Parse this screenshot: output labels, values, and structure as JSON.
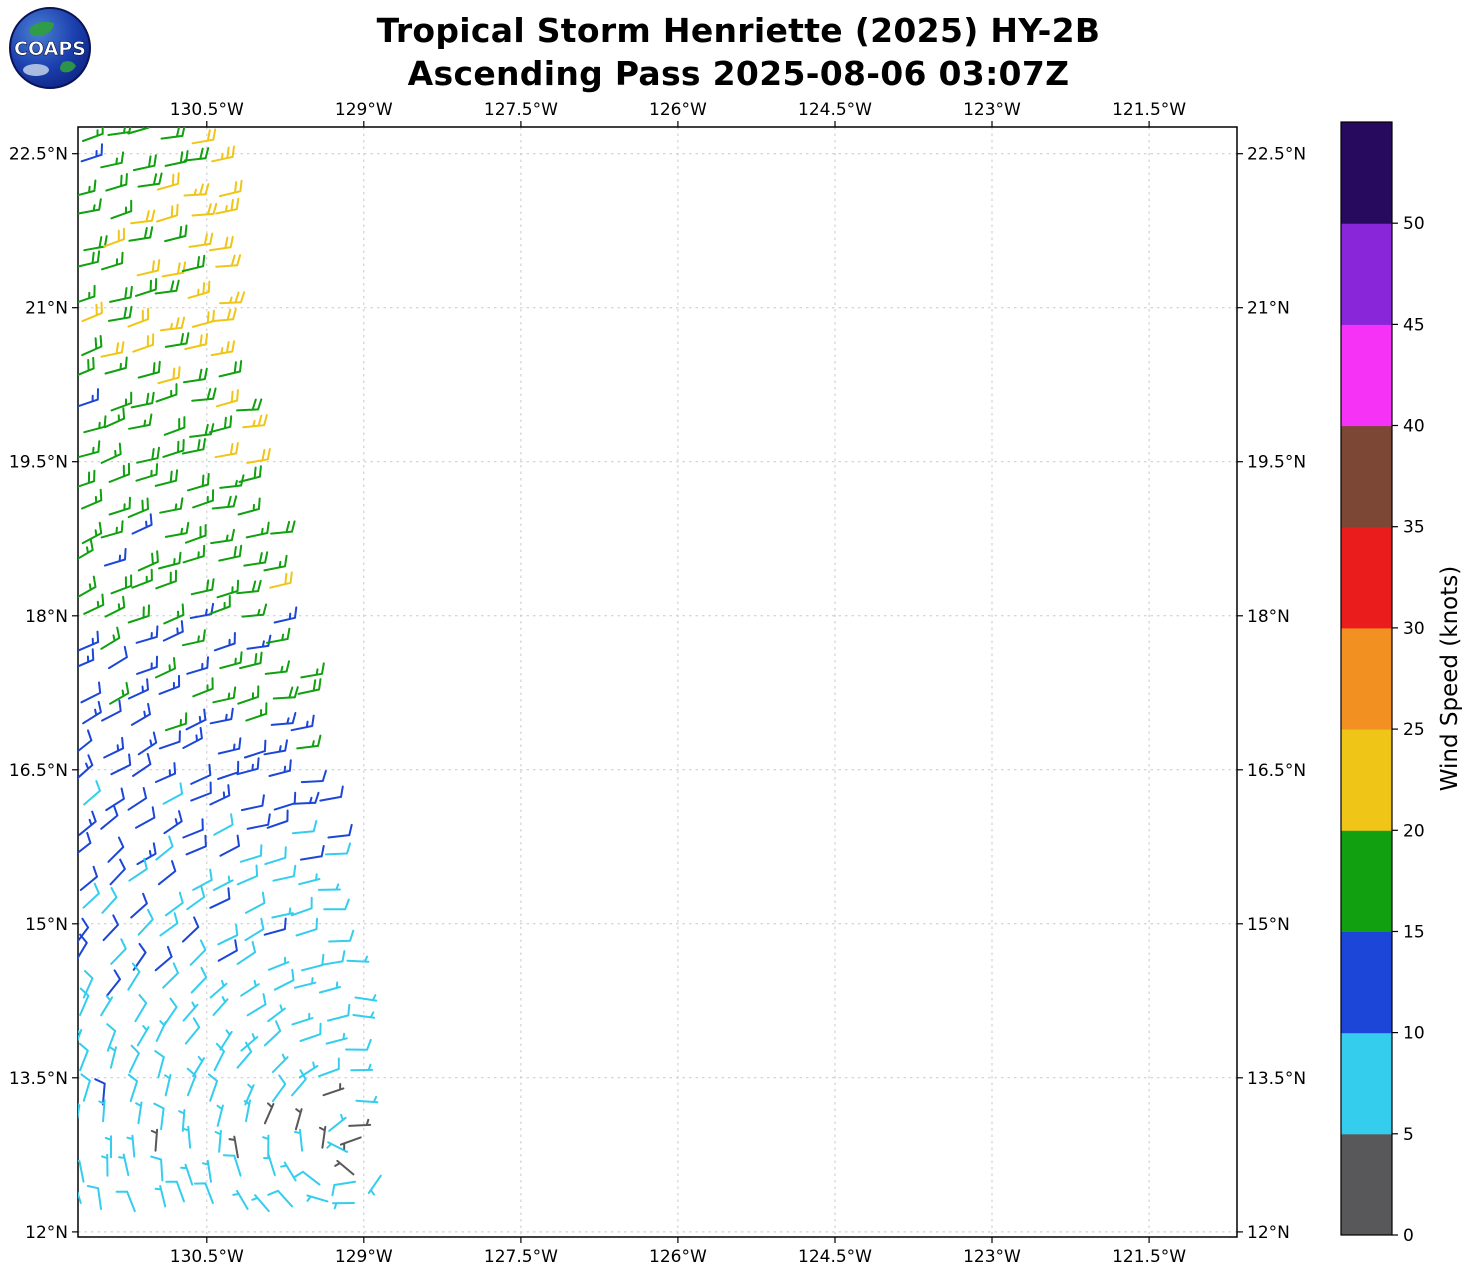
{
  "header": {
    "title_line1": "Tropical Storm Henriette (2025) HY-2B",
    "title_line2": "Ascending Pass 2025-08-06 03:07Z"
  },
  "logo": {
    "text": "COAPS"
  },
  "chart_data": {
    "type": "scatter",
    "subtype": "wind_barb_map",
    "title": "Tropical Storm Henriette (2025) HY-2B",
    "subtitle": "Ascending Pass 2025-08-06 03:07Z",
    "x_axis": {
      "ticks": [
        -130.5,
        -129,
        -127.5,
        -126,
        -124.5,
        -123,
        -121.5
      ],
      "tick_labels": [
        "130.5°W",
        "129°W",
        "127.5°W",
        "126°W",
        "124.5°W",
        "123°W",
        "121.5°W"
      ],
      "range": [
        -131.73,
        -120.66
      ]
    },
    "y_axis": {
      "ticks": [
        22.5,
        21,
        19.5,
        18,
        16.5,
        15,
        13.5,
        12
      ],
      "tick_labels": [
        "22.5°N",
        "21°N",
        "19.5°N",
        "18°N",
        "16.5°N",
        "15°N",
        "13.5°N",
        "12°N"
      ],
      "range": [
        11.95,
        22.76
      ]
    },
    "grid": true,
    "colorbar": {
      "label": "Wind Speed (knots)",
      "tick_values": [
        0,
        5,
        10,
        15,
        20,
        25,
        30,
        35,
        40,
        45,
        50
      ],
      "bins": [
        {
          "min": 0,
          "max": 5,
          "color": "#58585a"
        },
        {
          "min": 5,
          "max": 10,
          "color": "#35cdee"
        },
        {
          "min": 10,
          "max": 15,
          "color": "#1b46d7"
        },
        {
          "min": 15,
          "max": 20,
          "color": "#10a010"
        },
        {
          "min": 20,
          "max": 25,
          "color": "#efc617"
        },
        {
          "min": 25,
          "max": 30,
          "color": "#f29022"
        },
        {
          "min": 30,
          "max": 35,
          "color": "#ea1c1c"
        },
        {
          "min": 35,
          "max": 40,
          "color": "#7d4735"
        },
        {
          "min": 40,
          "max": 45,
          "color": "#f632f6"
        },
        {
          "min": 45,
          "max": 50,
          "color": "#8926d9"
        },
        {
          "min": 50,
          "max": 55,
          "color": "#27095e"
        }
      ]
    },
    "storm_center": {
      "lat": 12.8,
      "lon": -129.15
    },
    "swath": {
      "lon_west": -131.72,
      "lon_step": 0.26,
      "row_format": [
        "lat",
        "lon_east",
        "speed_west_kt",
        "speed_east_kt"
      ],
      "rows": [
        [
          22.65,
          -130.52,
          17,
          21
        ],
        [
          22.39,
          -130.42,
          16,
          22
        ],
        [
          22.13,
          -130.4,
          17,
          22
        ],
        [
          21.87,
          -130.38,
          16,
          22
        ],
        [
          21.61,
          -130.36,
          18,
          22
        ],
        [
          21.35,
          -130.33,
          19,
          23
        ],
        [
          21.09,
          -130.3,
          18,
          23
        ],
        [
          20.83,
          -130.28,
          19,
          22
        ],
        [
          20.57,
          -130.25,
          18,
          22
        ],
        [
          20.31,
          -130.18,
          17,
          22
        ],
        [
          20.05,
          -130.15,
          16,
          21
        ],
        [
          19.79,
          -130.1,
          16,
          21
        ],
        [
          19.53,
          -130.05,
          16,
          20
        ],
        [
          19.27,
          -130.0,
          16,
          19
        ],
        [
          19.01,
          -129.95,
          17,
          18
        ],
        [
          18.75,
          -129.9,
          16,
          18
        ],
        [
          18.49,
          -129.85,
          16,
          18
        ],
        [
          18.23,
          -129.8,
          16,
          18
        ],
        [
          17.97,
          -129.72,
          16,
          17
        ],
        [
          17.71,
          -129.66,
          15,
          17
        ],
        [
          17.45,
          -129.6,
          14,
          17
        ],
        [
          17.19,
          -129.55,
          13,
          17
        ],
        [
          16.93,
          -129.5,
          12,
          16
        ],
        [
          16.67,
          -129.45,
          12,
          16
        ],
        [
          16.41,
          -129.4,
          12,
          14
        ],
        [
          16.15,
          -129.35,
          12,
          11
        ],
        [
          15.89,
          -129.3,
          11,
          9
        ],
        [
          15.63,
          -129.28,
          11,
          9
        ],
        [
          15.37,
          -129.25,
          11,
          8
        ],
        [
          15.11,
          -129.2,
          11,
          8
        ],
        [
          14.85,
          -129.15,
          10,
          8
        ],
        [
          14.59,
          -129.1,
          10,
          7
        ],
        [
          14.33,
          -129.05,
          9,
          7
        ],
        [
          14.07,
          -129.0,
          9,
          7
        ],
        [
          13.81,
          -128.97,
          8,
          7
        ],
        [
          13.55,
          -128.93,
          8,
          6
        ],
        [
          13.29,
          -128.9,
          8,
          6
        ],
        [
          13.03,
          -128.87,
          7,
          6
        ],
        [
          12.77,
          -128.95,
          7,
          6
        ],
        [
          12.51,
          -128.85,
          8,
          6
        ],
        [
          12.25,
          -128.9,
          7,
          6
        ]
      ]
    },
    "extra_barbs": [
      {
        "lat": 12.92,
        "lon": -129.03,
        "speed": 3,
        "dir_from": 200
      },
      {
        "lat": 12.56,
        "lon": -129.1,
        "speed": 2,
        "dir_from": 140
      }
    ]
  }
}
